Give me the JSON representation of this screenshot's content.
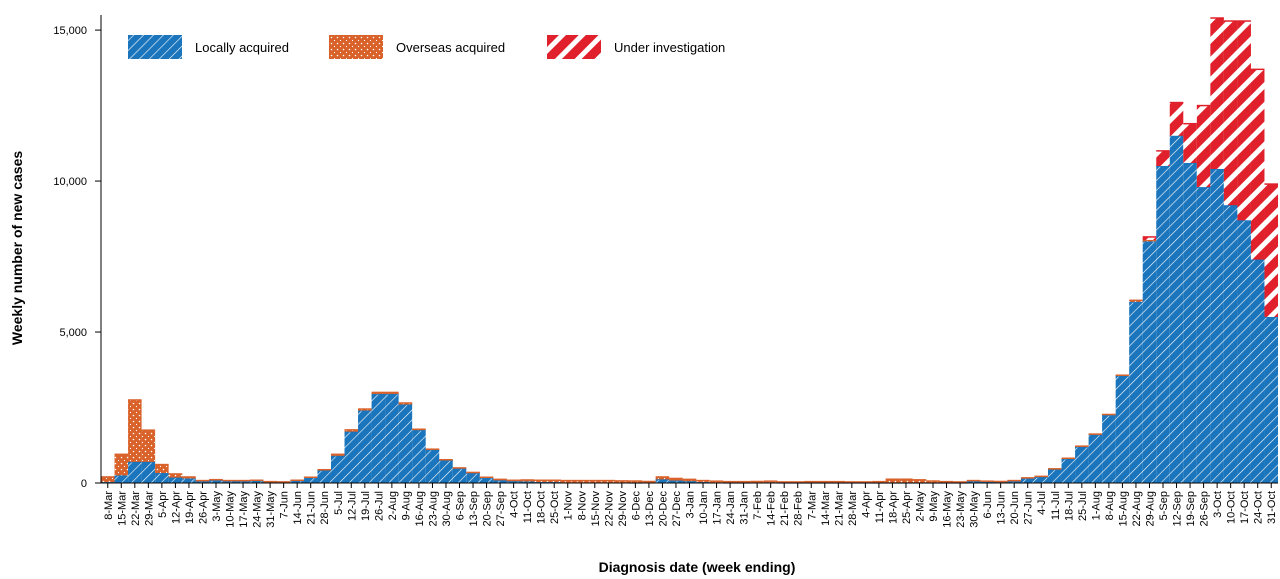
{
  "chart_data": {
    "type": "stacked_bar",
    "x_label": "Diagnosis date (week ending)",
    "y_label": "Weekly number of new cases",
    "categories": [
      "8-Mar",
      "15-Mar",
      "22-Mar",
      "29-Mar",
      "5-Apr",
      "12-Apr",
      "19-Apr",
      "26-Apr",
      "3-May",
      "10-May",
      "17-May",
      "24-May",
      "31-May",
      "7-Jun",
      "14-Jun",
      "21-Jun",
      "28-Jun",
      "5-Jul",
      "12-Jul",
      "19-Jul",
      "26-Jul",
      "2-Aug",
      "9-Aug",
      "16-Aug",
      "23-Aug",
      "30-Aug",
      "6-Sep",
      "13-Sep",
      "20-Sep",
      "27-Sep",
      "4-Oct",
      "11-Oct",
      "18-Oct",
      "25-Oct",
      "1-Nov",
      "8-Nov",
      "15-Nov",
      "22-Nov",
      "29-Nov",
      "6-Dec",
      "13-Dec",
      "20-Dec",
      "27-Dec",
      "3-Jan",
      "10-Jan",
      "17-Jan",
      "24-Jan",
      "31-Jan",
      "7-Feb",
      "14-Feb",
      "21-Feb",
      "28-Feb",
      "7-Mar",
      "14-Mar",
      "21-Mar",
      "28-Mar",
      "4-Apr",
      "11-Apr",
      "18-Apr",
      "25-Apr",
      "2-May",
      "9-May",
      "16-May",
      "23-May",
      "30-May",
      "6-Jun",
      "13-Jun",
      "20-Jun",
      "27-Jun",
      "4-Jul",
      "11-Jul",
      "18-Jul",
      "25-Jul",
      "1-Aug",
      "8-Aug",
      "15-Aug",
      "22-Aug",
      "29-Aug",
      "5-Sep",
      "12-Sep",
      "19-Sep",
      "26-Sep",
      "3-Oct",
      "10-Oct",
      "17-Oct",
      "24-Oct",
      "31-Oct"
    ],
    "series": [
      {
        "name": "Locally acquired",
        "color": "#1b75bc",
        "pattern": "lines",
        "values": [
          30,
          250,
          700,
          700,
          330,
          180,
          150,
          60,
          90,
          70,
          60,
          80,
          40,
          30,
          80,
          180,
          420,
          900,
          1700,
          2400,
          2950,
          2950,
          2600,
          1750,
          1100,
          750,
          480,
          330,
          170,
          90,
          60,
          50,
          30,
          30,
          10,
          10,
          10,
          10,
          10,
          5,
          10,
          120,
          80,
          60,
          30,
          10,
          5,
          5,
          10,
          20,
          5,
          5,
          5,
          5,
          5,
          5,
          5,
          5,
          5,
          5,
          5,
          5,
          5,
          5,
          60,
          40,
          30,
          60,
          150,
          200,
          450,
          800,
          1200,
          1600,
          2250,
          3550,
          6000,
          8000,
          10500,
          11500,
          10600,
          9800,
          10400,
          9200,
          8700,
          7400,
          5500
        ]
      },
      {
        "name": "Overseas acquired",
        "color": "#d9622b",
        "pattern": "dots",
        "values": [
          170,
          700,
          2050,
          1050,
          280,
          120,
          50,
          20,
          20,
          10,
          20,
          10,
          5,
          5,
          10,
          10,
          20,
          50,
          60,
          50,
          50,
          50,
          50,
          30,
          20,
          20,
          20,
          20,
          20,
          30,
          30,
          50,
          60,
          60,
          70,
          70,
          70,
          70,
          60,
          60,
          40,
          80,
          70,
          60,
          50,
          50,
          40,
          40,
          40,
          40,
          30,
          30,
          40,
          40,
          40,
          30,
          30,
          40,
          120,
          120,
          100,
          60,
          40,
          30,
          20,
          20,
          20,
          20,
          20,
          20,
          20,
          20,
          20,
          20,
          20,
          20,
          50,
          50,
          0,
          0,
          0,
          0,
          0,
          0,
          0,
          0,
          0
        ]
      },
      {
        "name": "Under investigation",
        "color": "#e0202a",
        "pattern": "stripes",
        "values": [
          0,
          0,
          0,
          0,
          0,
          0,
          0,
          0,
          0,
          0,
          0,
          0,
          0,
          0,
          0,
          0,
          0,
          0,
          0,
          0,
          0,
          0,
          0,
          0,
          0,
          0,
          0,
          0,
          0,
          0,
          0,
          0,
          0,
          0,
          0,
          0,
          0,
          0,
          0,
          0,
          0,
          0,
          0,
          0,
          0,
          0,
          0,
          0,
          0,
          0,
          0,
          0,
          0,
          0,
          0,
          0,
          0,
          0,
          0,
          0,
          0,
          0,
          0,
          0,
          0,
          0,
          0,
          0,
          0,
          0,
          0,
          0,
          0,
          0,
          0,
          0,
          0,
          100,
          500,
          1100,
          1300,
          2700,
          5000,
          6100,
          6600,
          6300,
          4400
        ]
      }
    ],
    "ylim": [
      0,
      15500
    ],
    "yticks": [
      0,
      {
        "value": 5000,
        "label": "5,000"
      },
      {
        "value": 10000,
        "label": "10,000"
      },
      {
        "value": 15000,
        "label": "15,000"
      }
    ],
    "legend": "top-left"
  }
}
